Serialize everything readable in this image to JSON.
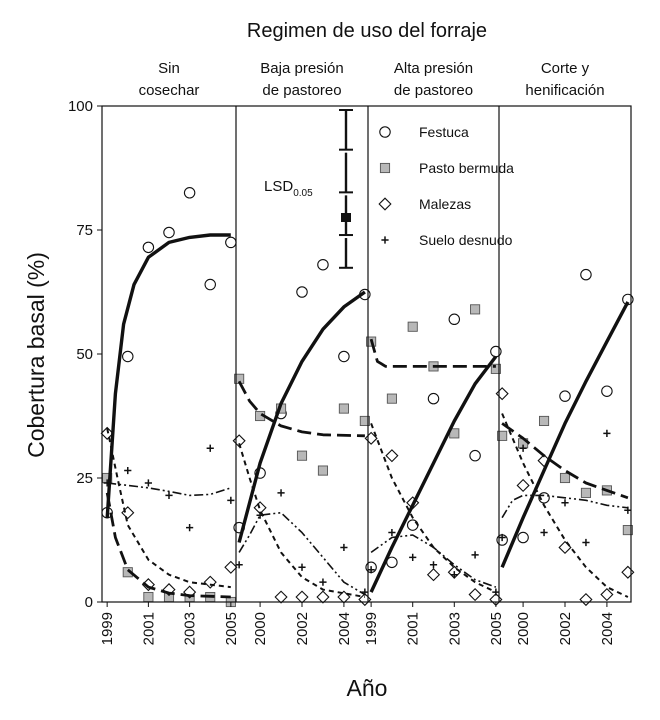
{
  "chart_data": {
    "type": "scatter",
    "super_title": "Regimen de uso del forraje",
    "xlabel": "Año",
    "ylabel": "Cobertura basal (%)",
    "ylim": [
      0,
      100
    ],
    "yticks": [
      0,
      25,
      50,
      75,
      100
    ],
    "grid": false,
    "legend_position": "top-right",
    "legend": [
      {
        "key": "festuca",
        "label": "Festuca",
        "marker": "circle"
      },
      {
        "key": "bermuda",
        "label": "Pasto bermuda",
        "marker": "square"
      },
      {
        "key": "malezas",
        "label": "Malezas",
        "marker": "diamond"
      },
      {
        "key": "suelo",
        "label": "Suelo desnudo",
        "marker": "plus"
      }
    ],
    "lsd": {
      "label": "LSD",
      "subscript": "0.05",
      "values": [
        8,
        8,
        8,
        6
      ]
    },
    "panels": [
      {
        "title": [
          "Sin",
          "cosechar"
        ],
        "xlim": [
          1998.75,
          2005.25
        ],
        "xticks": [
          "1999",
          "2001",
          "2003",
          "2005"
        ],
        "points": {
          "festuca": [
            [
              1999,
              18
            ],
            [
              2000,
              49.5
            ],
            [
              2001,
              71.5
            ],
            [
              2002,
              74.5
            ],
            [
              2003,
              82.5
            ],
            [
              2004,
              64
            ],
            [
              2005,
              72.5
            ]
          ],
          "bermuda": [
            [
              1999,
              25
            ],
            [
              2000,
              6
            ],
            [
              2001,
              1
            ],
            [
              2002,
              1
            ],
            [
              2003,
              1
            ],
            [
              2004,
              1
            ],
            [
              2005,
              0
            ]
          ],
          "malezas": [
            [
              1999,
              34
            ],
            [
              2000,
              18
            ],
            [
              2001,
              3.5
            ],
            [
              2002,
              2.5
            ],
            [
              2003,
              2
            ],
            [
              2004,
              4
            ],
            [
              2005,
              7
            ]
          ],
          "suelo": [
            [
              1999,
              24
            ],
            [
              2000,
              26.5
            ],
            [
              2001,
              24
            ],
            [
              2002,
              21.5
            ],
            [
              2003,
              15
            ],
            [
              2004,
              31
            ],
            [
              2005,
              20.5
            ]
          ]
        },
        "curves": {
          "festuca": [
            [
              1999,
              17
            ],
            [
              1999.4,
              42
            ],
            [
              1999.8,
              56
            ],
            [
              2000.3,
              64
            ],
            [
              2001,
              69.5
            ],
            [
              2002,
              72.5
            ],
            [
              2003,
              73.5
            ],
            [
              2004,
              74
            ],
            [
              2005,
              74
            ]
          ],
          "bermuda": [
            [
              1999,
              22
            ],
            [
              1999.4,
              13
            ],
            [
              2000,
              6.5
            ],
            [
              2001,
              3
            ],
            [
              2002,
              1.8
            ],
            [
              2003,
              1.3
            ],
            [
              2005,
              1
            ]
          ],
          "malezas": [
            [
              1999,
              35
            ],
            [
              1999.5,
              25
            ],
            [
              2000,
              15.5
            ],
            [
              2001,
              8.5
            ],
            [
              2002,
              5.5
            ],
            [
              2003,
              4
            ],
            [
              2005,
              3
            ]
          ],
          "suelo": [
            [
              1999,
              24
            ],
            [
              2000,
              23.5
            ],
            [
              2001,
              23
            ],
            [
              2002,
              22.3
            ],
            [
              2003,
              21.5
            ],
            [
              2004,
              21.7
            ],
            [
              2005,
              23
            ]
          ]
        }
      },
      {
        "title": [
          "Baja presión",
          "de pastoreo"
        ],
        "xlim": [
          1998.85,
          2005.15
        ],
        "xticks": [
          "2000",
          "2002",
          "2004"
        ],
        "points": {
          "festuca": [
            [
              1999,
              15
            ],
            [
              2000,
              26
            ],
            [
              2001,
              38
            ],
            [
              2002,
              62.5
            ],
            [
              2003,
              68
            ],
            [
              2004,
              49.5
            ],
            [
              2005,
              62
            ]
          ],
          "bermuda": [
            [
              1999,
              45
            ],
            [
              2000,
              37.5
            ],
            [
              2001,
              39
            ],
            [
              2002,
              29.5
            ],
            [
              2003,
              26.5
            ],
            [
              2004,
              39
            ],
            [
              2005,
              36.5
            ]
          ],
          "malezas": [
            [
              1999,
              32.5
            ],
            [
              2000,
              19
            ],
            [
              2001,
              1
            ],
            [
              2002,
              1
            ],
            [
              2003,
              1
            ],
            [
              2004,
              1
            ],
            [
              2005,
              0.5
            ]
          ],
          "suelo": [
            [
              1999,
              7.5
            ],
            [
              2000,
              17.5
            ],
            [
              2001,
              22
            ],
            [
              2002,
              7
            ],
            [
              2003,
              4
            ],
            [
              2004,
              11
            ],
            [
              2005,
              2
            ]
          ]
        },
        "curves": {
          "festuca": [
            [
              1999,
              12
            ],
            [
              2000,
              28
            ],
            [
              2001,
              40
            ],
            [
              2002,
              48.5
            ],
            [
              2003,
              55
            ],
            [
              2004,
              59.5
            ],
            [
              2005,
              62.5
            ]
          ],
          "bermuda": [
            [
              1999,
              44.5
            ],
            [
              1999.5,
              40.5
            ],
            [
              2000,
              38
            ],
            [
              2001,
              35.5
            ],
            [
              2002,
              34.3
            ],
            [
              2003,
              33.7
            ],
            [
              2005,
              33.5
            ]
          ],
          "malezas": [
            [
              1999,
              32
            ],
            [
              1999.5,
              25
            ],
            [
              2000,
              18.5
            ],
            [
              2001,
              10
            ],
            [
              2002,
              5
            ],
            [
              2003,
              2.5
            ],
            [
              2005,
              1
            ]
          ],
          "suelo": [
            [
              1999,
              10
            ],
            [
              1999.5,
              13.5
            ],
            [
              2000,
              17.5
            ],
            [
              2001,
              18
            ],
            [
              2002,
              14
            ],
            [
              2003,
              9
            ],
            [
              2004,
              4
            ],
            [
              2005,
              1.5
            ]
          ]
        }
      },
      {
        "title": [
          "Alta presión",
          "de pastoreo"
        ],
        "xlim": [
          1998.85,
          2005.15
        ],
        "xticks": [
          "1999",
          "2001",
          "2003",
          "2005"
        ],
        "points": {
          "festuca": [
            [
              1999,
              7
            ],
            [
              2000,
              8
            ],
            [
              2001,
              15.5
            ],
            [
              2002,
              41
            ],
            [
              2003,
              57
            ],
            [
              2004,
              29.5
            ],
            [
              2005,
              50.5
            ]
          ],
          "bermuda": [
            [
              1999,
              52.5
            ],
            [
              2000,
              41
            ],
            [
              2001,
              55.5
            ],
            [
              2002,
              47.5
            ],
            [
              2003,
              34
            ],
            [
              2004,
              59
            ],
            [
              2005,
              47
            ]
          ],
          "malezas": [
            [
              1999,
              33
            ],
            [
              2000,
              29.5
            ],
            [
              2001,
              20
            ],
            [
              2002,
              5.5
            ],
            [
              2003,
              6
            ],
            [
              2004,
              1.5
            ],
            [
              2005,
              0.5
            ]
          ],
          "suelo": [
            [
              1999,
              6.5
            ],
            [
              2000,
              14
            ],
            [
              2001,
              9
            ],
            [
              2002,
              7.5
            ],
            [
              2003,
              5.5
            ],
            [
              2004,
              9.5
            ],
            [
              2005,
              2
            ]
          ]
        },
        "curves": {
          "festuca": [
            [
              1999,
              2
            ],
            [
              2000,
              11
            ],
            [
              2001,
              19.5
            ],
            [
              2002,
              28
            ],
            [
              2003,
              36.5
            ],
            [
              2004,
              44
            ],
            [
              2005,
              49.5
            ]
          ],
          "bermuda": [
            [
              1999,
              53
            ],
            [
              1999.3,
              48.5
            ],
            [
              1999.7,
              47.5
            ],
            [
              2000.5,
              47.5
            ],
            [
              2002,
              47.5
            ],
            [
              2003,
              47.5
            ],
            [
              2004,
              47.5
            ],
            [
              2005,
              47.5
            ]
          ],
          "malezas": [
            [
              1999,
              36
            ],
            [
              2000,
              25
            ],
            [
              2001,
              17
            ],
            [
              2002,
              11
            ],
            [
              2003,
              7
            ],
            [
              2004,
              4
            ],
            [
              2005,
              2
            ]
          ],
          "suelo": [
            [
              1999,
              10
            ],
            [
              2000,
              13
            ],
            [
              2001,
              13.5
            ],
            [
              2002,
              11
            ],
            [
              2003,
              7.5
            ],
            [
              2004,
              4.5
            ],
            [
              2005,
              3
            ]
          ]
        }
      },
      {
        "title": [
          "Corte y",
          "henificación"
        ],
        "xlim": [
          1998.85,
          2005.15
        ],
        "xticks": [
          "2000",
          "2002",
          "2004"
        ],
        "points": {
          "festuca": [
            [
              1999,
              12.5
            ],
            [
              2000,
              13
            ],
            [
              2001,
              21
            ],
            [
              2002,
              41.5
            ],
            [
              2003,
              66
            ],
            [
              2004,
              42.5
            ],
            [
              2005,
              61
            ]
          ],
          "bermuda": [
            [
              1999,
              33.5
            ],
            [
              2000,
              32
            ],
            [
              2001,
              36.5
            ],
            [
              2002,
              25
            ],
            [
              2003,
              22
            ],
            [
              2004,
              22.5
            ],
            [
              2005,
              14.5
            ]
          ],
          "malezas": [
            [
              1999,
              42
            ],
            [
              2000,
              23.5
            ],
            [
              2001,
              28.5
            ],
            [
              2002,
              11
            ],
            [
              2003,
              0.5
            ],
            [
              2004,
              1.5
            ],
            [
              2005,
              6
            ]
          ],
          "suelo": [
            [
              1999,
              13
            ],
            [
              2000,
              31
            ],
            [
              2001,
              14
            ],
            [
              2002,
              20
            ],
            [
              2003,
              12
            ],
            [
              2004,
              34
            ],
            [
              2005,
              18.5
            ]
          ]
        },
        "curves": {
          "festuca": [
            [
              1999,
              7
            ],
            [
              2000,
              17
            ],
            [
              2001,
              26.5
            ],
            [
              2002,
              36
            ],
            [
              2003,
              44.5
            ],
            [
              2004,
              52.5
            ],
            [
              2005,
              60.5
            ]
          ],
          "bermuda": [
            [
              1999,
              36
            ],
            [
              2000,
              33
            ],
            [
              2001,
              29.5
            ],
            [
              2002,
              26.5
            ],
            [
              2003,
              24
            ],
            [
              2004,
              22.5
            ],
            [
              2005,
              21
            ]
          ],
          "malezas": [
            [
              1999,
              38
            ],
            [
              2000,
              28
            ],
            [
              2001,
              19.5
            ],
            [
              2002,
              12.5
            ],
            [
              2003,
              7
            ],
            [
              2004,
              3
            ],
            [
              2005,
              1
            ]
          ],
          "suelo": [
            [
              1999,
              17
            ],
            [
              1999.5,
              20.5
            ],
            [
              2000,
              21.5
            ],
            [
              2001,
              21.5
            ],
            [
              2002,
              21
            ],
            [
              2003,
              20.5
            ],
            [
              2004,
              19.5
            ],
            [
              2005,
              19
            ]
          ]
        }
      }
    ]
  }
}
